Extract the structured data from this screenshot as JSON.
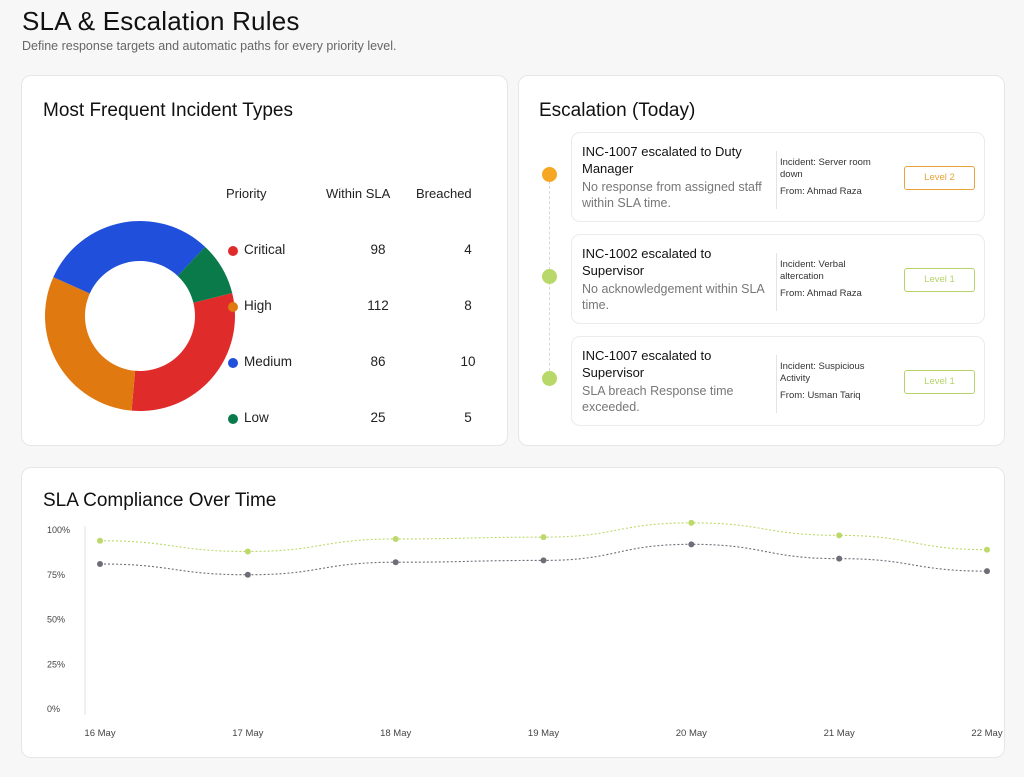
{
  "page": {
    "title": "SLA & Escalation Rules",
    "subtitle": "Define response targets and automatic paths for every priority level."
  },
  "incident_types": {
    "title": "Most Frequent Incident Types",
    "columns": {
      "priority": "Priority",
      "within": "Within SLA",
      "breached": "Breached"
    },
    "rows": [
      {
        "priority": "Critical",
        "within": "98",
        "breached": "4",
        "color": "#e02b2b"
      },
      {
        "priority": "High",
        "within": "112",
        "breached": "8",
        "color": "#e07a10"
      },
      {
        "priority": "Medium",
        "within": "86",
        "breached": "10",
        "color": "#1f4fdb"
      },
      {
        "priority": "Low",
        "within": "25",
        "breached": "5",
        "color": "#0a7a4a"
      }
    ]
  },
  "escalation": {
    "title": "Escalation (Today)",
    "items": [
      {
        "title": "INC-1007 escalated to Duty Manager",
        "desc": "No response from assigned staff within SLA time.",
        "incident": "Incident: Server room down",
        "from": "From: Ahmad Raza",
        "level": "Level 2",
        "dot_color": "#f5a623",
        "level_color": "#e8a33a"
      },
      {
        "title": "INC-1002 escalated to Supervisor",
        "desc": "No acknowledgement within SLA time.",
        "incident": "Incident: Verbal altercation",
        "from": "From: Ahmad Raza",
        "level": "Level 1",
        "dot_color": "#b8d86a",
        "level_color": "#b5d36a"
      },
      {
        "title": "INC-1007 escalated to Supervisor",
        "desc": "SLA breach Response time exceeded.",
        "incident": "Incident: Suspicious Activity",
        "from": "From: Usman Tariq",
        "level": "Level 1",
        "dot_color": "#b8d86a",
        "level_color": "#b5d36a"
      }
    ]
  },
  "compliance": {
    "title": "SLA Compliance Over Time"
  },
  "chart_data": [
    {
      "type": "pie",
      "title": "",
      "labels": [
        "Critical",
        "High",
        "Medium",
        "Low"
      ],
      "values": [
        30,
        30,
        30,
        9
      ],
      "colors": [
        "#e02b2b",
        "#e07a10",
        "#1f4fdb",
        "#0a7a4a"
      ]
    },
    {
      "type": "line",
      "title": "SLA Compliance Over Time",
      "categories": [
        "16 May",
        "17 May",
        "18 May",
        "19 May",
        "20 May",
        "21 May",
        "22 May"
      ],
      "yticks": [
        "0%",
        "25%",
        "50%",
        "75%",
        "100%"
      ],
      "ylim": [
        0,
        100
      ],
      "grid": false,
      "series": [
        {
          "values": [
            94,
            88,
            95,
            96,
            104,
            97,
            89
          ],
          "color": "#bcd96a"
        },
        {
          "values": [
            81,
            75,
            82,
            83,
            92,
            84,
            77
          ],
          "color": "#6e6e78"
        }
      ]
    }
  ]
}
